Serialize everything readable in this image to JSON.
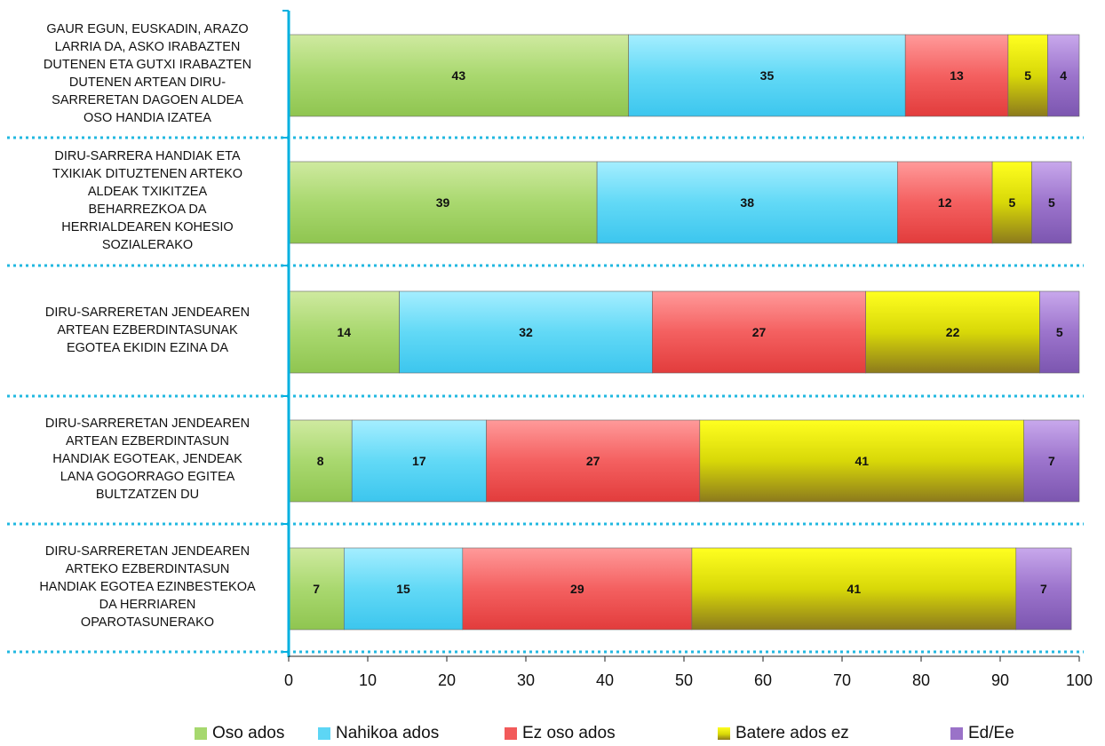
{
  "chart_data": {
    "type": "bar",
    "orientation": "horizontal",
    "stacked": true,
    "categories": [
      "GAUR EGUN, EUSKADIN, ARAZO LARRIA DA, ASKO IRABAZTEN DUTENEN ETA GUTXI IRABAZTEN DUTENEN ARTEAN DIRU-SARRERETAN DAGOEN ALDEA OSO HANDIA IZATEA",
      "DIRU-SARRERA HANDIAK ETA TXIKIAK DITUZTENEN ARTEKO ALDEAK TXIKITZEA BEHARREZKOA DA HERRIALDEAREN KOHESIO SOZIALERAKO",
      "DIRU-SARRERETAN JENDEAREN ARTEAN EZBERDINTASUNAK EGOTEA EKIDIN EZINA DA",
      "DIRU-SARRERETAN JENDEAREN ARTEAN EZBERDINTASUN HANDIAK EGOTEAK, JENDEAK LANA GOGORRAGO EGITEA BULTZATZEN DU",
      "DIRU-SARRERETAN JENDEAREN ARTEKO EZBERDINTASUN HANDIAK EGOTEA EZINBESTEKOA DA HERRIAREN OPAROTASUNERAKO"
    ],
    "category_lines": [
      [
        "GAUR EGUN, EUSKADIN, ARAZO",
        "LARRIA DA, ASKO IRABAZTEN",
        "DUTENEN ETA GUTXI IRABAZTEN",
        "DUTENEN ARTEAN DIRU-",
        "SARRERETAN DAGOEN ALDEA",
        "OSO HANDIA IZATEA"
      ],
      [
        "DIRU-SARRERA HANDIAK ETA",
        "TXIKIAK DITUZTENEN ARTEKO",
        "ALDEAK TXIKITZEA",
        "BEHARREZKOA DA",
        "HERRIALDEAREN KOHESIO",
        "SOZIALERAKO"
      ],
      [
        "DIRU-SARRERETAN JENDEAREN",
        "ARTEAN EZBERDINTASUNAK",
        "EGOTEA EKIDIN EZINA DA"
      ],
      [
        "DIRU-SARRERETAN JENDEAREN",
        "ARTEAN EZBERDINTASUN",
        "HANDIAK EGOTEAK, JENDEAK",
        "LANA GOGORRAGO EGITEA",
        "BULTZATZEN DU"
      ],
      [
        "DIRU-SARRERETAN JENDEAREN",
        "ARTEKO EZBERDINTASUN",
        "HANDIAK EGOTEA EZINBESTEKOA",
        "DA HERRIAREN",
        "OPAROTASUNERAKO"
      ]
    ],
    "series": [
      {
        "name": "Oso ados",
        "values": [
          43,
          39,
          14,
          8,
          7
        ],
        "color": "#a6d86e"
      },
      {
        "name": "Nahikoa ados",
        "values": [
          35,
          38,
          32,
          17,
          15
        ],
        "color": "#5dd6f5"
      },
      {
        "name": "Ez oso ados",
        "values": [
          13,
          12,
          27,
          27,
          29
        ],
        "color": "#f25a5a"
      },
      {
        "name": "Batere ados ez",
        "values": [
          5,
          5,
          22,
          41,
          41
        ],
        "color": "#dcdc08"
      },
      {
        "name": "Ed/Ee",
        "values": [
          4,
          5,
          5,
          7,
          7
        ],
        "color": "#9a72c8"
      }
    ],
    "xlim": [
      0,
      100
    ],
    "xticks": [
      0,
      10,
      20,
      30,
      40,
      50,
      60,
      70,
      80,
      90,
      100
    ],
    "grid": false,
    "legend_position": "bottom",
    "axis_color": "#00b0e0",
    "separator_color": "#22b8e0"
  }
}
